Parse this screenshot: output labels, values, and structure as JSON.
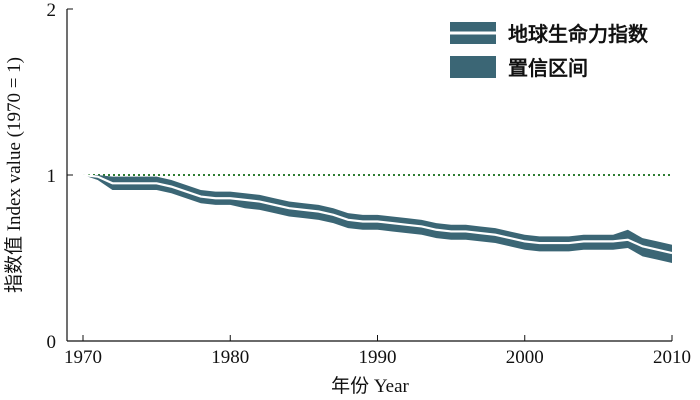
{
  "chart_data": {
    "type": "area",
    "title": "",
    "xlabel": "年份 Year",
    "ylabel": "指数值 Index value (1970 = 1)",
    "xlim": [
      1966,
      2010
    ],
    "ylim": [
      0,
      2
    ],
    "x_ticks": [
      1970,
      1980,
      1990,
      2000,
      2010
    ],
    "y_ticks": [
      0,
      1,
      2
    ],
    "grid": false,
    "legend_position": "top-right",
    "reference_line": {
      "y": 1,
      "style": "dotted",
      "color": "#2e7d32"
    },
    "colors": {
      "band": "#3b6675",
      "line": "#ffffff",
      "reference": "#2e7d32"
    },
    "x": [
      1970,
      1971,
      1972,
      1973,
      1974,
      1975,
      1976,
      1977,
      1978,
      1979,
      1980,
      1981,
      1982,
      1983,
      1984,
      1985,
      1986,
      1987,
      1988,
      1989,
      1990,
      1991,
      1992,
      1993,
      1994,
      1995,
      1996,
      1997,
      1998,
      1999,
      2000,
      2001,
      2002,
      2003,
      2004,
      2005,
      2006,
      2007,
      2008,
      2009,
      2010
    ],
    "series": [
      {
        "name": "地球生命力指数",
        "legend_label": "地球生命力指数",
        "values": [
          1.0,
          0.99,
          0.95,
          0.95,
          0.95,
          0.95,
          0.93,
          0.9,
          0.87,
          0.86,
          0.86,
          0.85,
          0.84,
          0.82,
          0.8,
          0.79,
          0.78,
          0.76,
          0.73,
          0.72,
          0.72,
          0.71,
          0.7,
          0.69,
          0.67,
          0.66,
          0.66,
          0.65,
          0.64,
          0.62,
          0.6,
          0.59,
          0.59,
          0.59,
          0.6,
          0.6,
          0.6,
          0.61,
          0.57,
          0.55,
          0.53
        ]
      },
      {
        "name": "置信区间",
        "legend_label": "置信区间",
        "lower": [
          1.0,
          0.97,
          0.91,
          0.91,
          0.91,
          0.91,
          0.89,
          0.86,
          0.83,
          0.82,
          0.82,
          0.8,
          0.79,
          0.77,
          0.75,
          0.74,
          0.73,
          0.71,
          0.68,
          0.67,
          0.67,
          0.66,
          0.65,
          0.64,
          0.62,
          0.61,
          0.61,
          0.6,
          0.59,
          0.57,
          0.55,
          0.54,
          0.54,
          0.54,
          0.55,
          0.55,
          0.55,
          0.56,
          0.51,
          0.49,
          0.47
        ],
        "upper": [
          1.0,
          1.0,
          0.99,
          0.99,
          0.99,
          0.99,
          0.97,
          0.94,
          0.91,
          0.9,
          0.9,
          0.89,
          0.88,
          0.86,
          0.84,
          0.83,
          0.82,
          0.8,
          0.77,
          0.76,
          0.76,
          0.75,
          0.74,
          0.73,
          0.71,
          0.7,
          0.7,
          0.69,
          0.68,
          0.66,
          0.64,
          0.63,
          0.63,
          0.63,
          0.64,
          0.64,
          0.64,
          0.67,
          0.62,
          0.6,
          0.58
        ]
      }
    ]
  }
}
